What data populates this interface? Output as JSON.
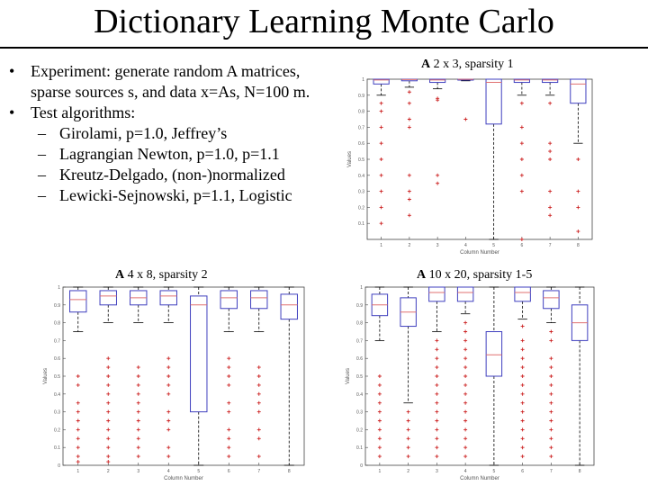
{
  "slide": {
    "title": "Dictionary Learning Monte Carlo",
    "bullets": [
      {
        "text": "Experiment: generate random A matrices, sparse sources s, and data x=As, N=100 m."
      },
      {
        "text": "Test algorithms:"
      }
    ],
    "sub_bullets": [
      "Girolami, p=1.0, Jeffrey’s",
      "Lagrangian Newton, p=1.0, p=1.1",
      "Kreutz-Delgado, (non-)normalized",
      "Lewicki-Sejnowski, p=1.1, Logistic"
    ],
    "plot_headings": {
      "top_right": {
        "bold": "A",
        "rest": " 2 x 3, sparsity 1"
      },
      "bottom_left": {
        "bold": "A",
        "rest": " 4 x 8, sparsity 2"
      },
      "bottom_right": {
        "bold": "A",
        "rest": " 10 x 20, sparsity 1-5"
      }
    }
  },
  "chart_data": [
    {
      "type": "boxplot",
      "title": "A 2 x 3, sparsity 1",
      "xlabel": "Column Number",
      "ylabel": "Values",
      "categories": [
        "1",
        "2",
        "3",
        "4",
        "5",
        "6",
        "7",
        "8"
      ],
      "ylim": [
        0,
        1
      ],
      "yticks": [
        0.1,
        0.2,
        0.3,
        0.4,
        0.5,
        0.6,
        0.7,
        0.8,
        0.9,
        1
      ],
      "boxes": [
        {
          "q1": 0.97,
          "median": 0.995,
          "q3": 1.0,
          "whisker_low": 0.9,
          "whisker_high": 1.0,
          "outliers": [
            0.85,
            0.8,
            0.7,
            0.6,
            0.5,
            0.4,
            0.3,
            0.2,
            0.1
          ]
        },
        {
          "q1": 0.99,
          "median": 0.998,
          "q3": 1.0,
          "whisker_low": 0.95,
          "whisker_high": 1.0,
          "outliers": [
            0.92,
            0.85,
            0.75,
            0.7,
            0.4,
            0.3,
            0.25,
            0.15
          ]
        },
        {
          "q1": 0.98,
          "median": 0.995,
          "q3": 1.0,
          "whisker_low": 0.94,
          "whisker_high": 1.0,
          "outliers": [
            0.88,
            0.87,
            0.4,
            0.35
          ]
        },
        {
          "q1": 0.995,
          "median": 0.999,
          "q3": 1.0,
          "whisker_low": 0.99,
          "whisker_high": 1.0,
          "outliers": [
            0.75
          ]
        },
        {
          "q1": 0.72,
          "median": 0.98,
          "q3": 1.0,
          "whisker_low": 0.0,
          "whisker_high": 1.0,
          "outliers": []
        },
        {
          "q1": 0.98,
          "median": 0.995,
          "q3": 1.0,
          "whisker_low": 0.9,
          "whisker_high": 1.0,
          "outliers": [
            0.85,
            0.7,
            0.6,
            0.5,
            0.4,
            0.3,
            0.0
          ]
        },
        {
          "q1": 0.98,
          "median": 0.995,
          "q3": 1.0,
          "whisker_low": 0.9,
          "whisker_high": 1.0,
          "outliers": [
            0.85,
            0.6,
            0.55,
            0.5,
            0.3,
            0.2,
            0.15
          ]
        },
        {
          "q1": 0.85,
          "median": 0.97,
          "q3": 1.0,
          "whisker_low": 0.6,
          "whisker_high": 1.0,
          "outliers": [
            0.5,
            0.3,
            0.2,
            0.05
          ]
        }
      ]
    },
    {
      "type": "boxplot",
      "title": "A 4 x 8, sparsity 2",
      "xlabel": "Column Number",
      "ylabel": "Values",
      "categories": [
        "1",
        "2",
        "3",
        "4",
        "5",
        "6",
        "7",
        "8"
      ],
      "ylim": [
        0,
        1
      ],
      "yticks": [
        0,
        0.1,
        0.2,
        0.3,
        0.4,
        0.5,
        0.6,
        0.7,
        0.8,
        0.9,
        1
      ],
      "boxes": [
        {
          "q1": 0.86,
          "median": 0.93,
          "q3": 0.98,
          "whisker_low": 0.75,
          "whisker_high": 1.0,
          "outliers": [
            0.5,
            0.45,
            0.35,
            0.3,
            0.25,
            0.2,
            0.15,
            0.1,
            0.05,
            0.02
          ]
        },
        {
          "q1": 0.9,
          "median": 0.95,
          "q3": 0.98,
          "whisker_low": 0.8,
          "whisker_high": 1.0,
          "outliers": [
            0.6,
            0.55,
            0.5,
            0.45,
            0.4,
            0.35,
            0.3,
            0.25,
            0.2,
            0.15,
            0.1,
            0.05,
            0.02
          ]
        },
        {
          "q1": 0.9,
          "median": 0.94,
          "q3": 0.98,
          "whisker_low": 0.8,
          "whisker_high": 1.0,
          "outliers": [
            0.55,
            0.5,
            0.45,
            0.4,
            0.35,
            0.3,
            0.25,
            0.2,
            0.15,
            0.1,
            0.05
          ]
        },
        {
          "q1": 0.9,
          "median": 0.95,
          "q3": 0.98,
          "whisker_low": 0.8,
          "whisker_high": 1.0,
          "outliers": [
            0.6,
            0.55,
            0.5,
            0.45,
            0.4,
            0.3,
            0.25,
            0.2,
            0.1,
            0.05
          ]
        },
        {
          "q1": 0.3,
          "median": 0.9,
          "q3": 0.95,
          "whisker_low": 0.0,
          "whisker_high": 1.0,
          "outliers": []
        },
        {
          "q1": 0.88,
          "median": 0.94,
          "q3": 0.98,
          "whisker_low": 0.75,
          "whisker_high": 1.0,
          "outliers": [
            0.6,
            0.55,
            0.5,
            0.45,
            0.35,
            0.3,
            0.2,
            0.15,
            0.1,
            0.05
          ]
        },
        {
          "q1": 0.88,
          "median": 0.94,
          "q3": 0.98,
          "whisker_low": 0.75,
          "whisker_high": 1.0,
          "outliers": [
            0.55,
            0.5,
            0.45,
            0.4,
            0.35,
            0.3,
            0.2,
            0.15,
            0.05
          ]
        },
        {
          "q1": 0.82,
          "median": 0.9,
          "q3": 0.96,
          "whisker_low": 0.0,
          "whisker_high": 1.0,
          "outliers": []
        }
      ]
    },
    {
      "type": "boxplot",
      "title": "A 10 x 20, sparsity 1-5",
      "xlabel": "Column Number",
      "ylabel": "Values",
      "categories": [
        "1",
        "2",
        "3",
        "4",
        "5",
        "6",
        "7",
        "8"
      ],
      "ylim": [
        0,
        1
      ],
      "yticks": [
        0,
        0.1,
        0.2,
        0.3,
        0.4,
        0.5,
        0.6,
        0.7,
        0.8,
        0.9,
        1
      ],
      "boxes": [
        {
          "q1": 0.84,
          "median": 0.9,
          "q3": 0.96,
          "whisker_low": 0.7,
          "whisker_high": 1.0,
          "outliers": [
            0.5,
            0.45,
            0.4,
            0.35,
            0.3,
            0.25,
            0.2,
            0.15,
            0.1,
            0.05
          ]
        },
        {
          "q1": 0.78,
          "median": 0.86,
          "q3": 0.94,
          "whisker_low": 0.35,
          "whisker_high": 1.0,
          "outliers": [
            0.3,
            0.25,
            0.2,
            0.15,
            0.1,
            0.05
          ]
        },
        {
          "q1": 0.92,
          "median": 0.97,
          "q3": 1.0,
          "whisker_low": 0.75,
          "whisker_high": 1.0,
          "outliers": [
            0.7,
            0.65,
            0.6,
            0.55,
            0.5,
            0.45,
            0.4,
            0.35,
            0.3,
            0.25,
            0.2,
            0.15,
            0.1,
            0.05
          ]
        },
        {
          "q1": 0.92,
          "median": 0.97,
          "q3": 1.0,
          "whisker_low": 0.85,
          "whisker_high": 1.0,
          "outliers": [
            0.8,
            0.75,
            0.7,
            0.65,
            0.6,
            0.55,
            0.5,
            0.45,
            0.4,
            0.35,
            0.3,
            0.25,
            0.2,
            0.15,
            0.1,
            0.05
          ]
        },
        {
          "q1": 0.5,
          "median": 0.62,
          "q3": 0.75,
          "whisker_low": 0.0,
          "whisker_high": 1.0,
          "outliers": []
        },
        {
          "q1": 0.92,
          "median": 0.97,
          "q3": 1.0,
          "whisker_low": 0.82,
          "whisker_high": 1.0,
          "outliers": [
            0.78,
            0.7,
            0.65,
            0.6,
            0.55,
            0.5,
            0.45,
            0.4,
            0.35,
            0.3,
            0.25,
            0.2,
            0.15,
            0.1,
            0.05
          ]
        },
        {
          "q1": 0.88,
          "median": 0.94,
          "q3": 0.98,
          "whisker_low": 0.8,
          "whisker_high": 1.0,
          "outliers": [
            0.75,
            0.7,
            0.6,
            0.55,
            0.5,
            0.45,
            0.4,
            0.35,
            0.3,
            0.25,
            0.2,
            0.15,
            0.1,
            0.05
          ]
        },
        {
          "q1": 0.7,
          "median": 0.8,
          "q3": 0.9,
          "whisker_low": 0.0,
          "whisker_high": 1.0,
          "outliers": []
        }
      ]
    }
  ],
  "colors": {
    "box": "#3f3fbf",
    "median": "#e07070",
    "outlier": "#cc2222",
    "whisker": "#000000"
  }
}
